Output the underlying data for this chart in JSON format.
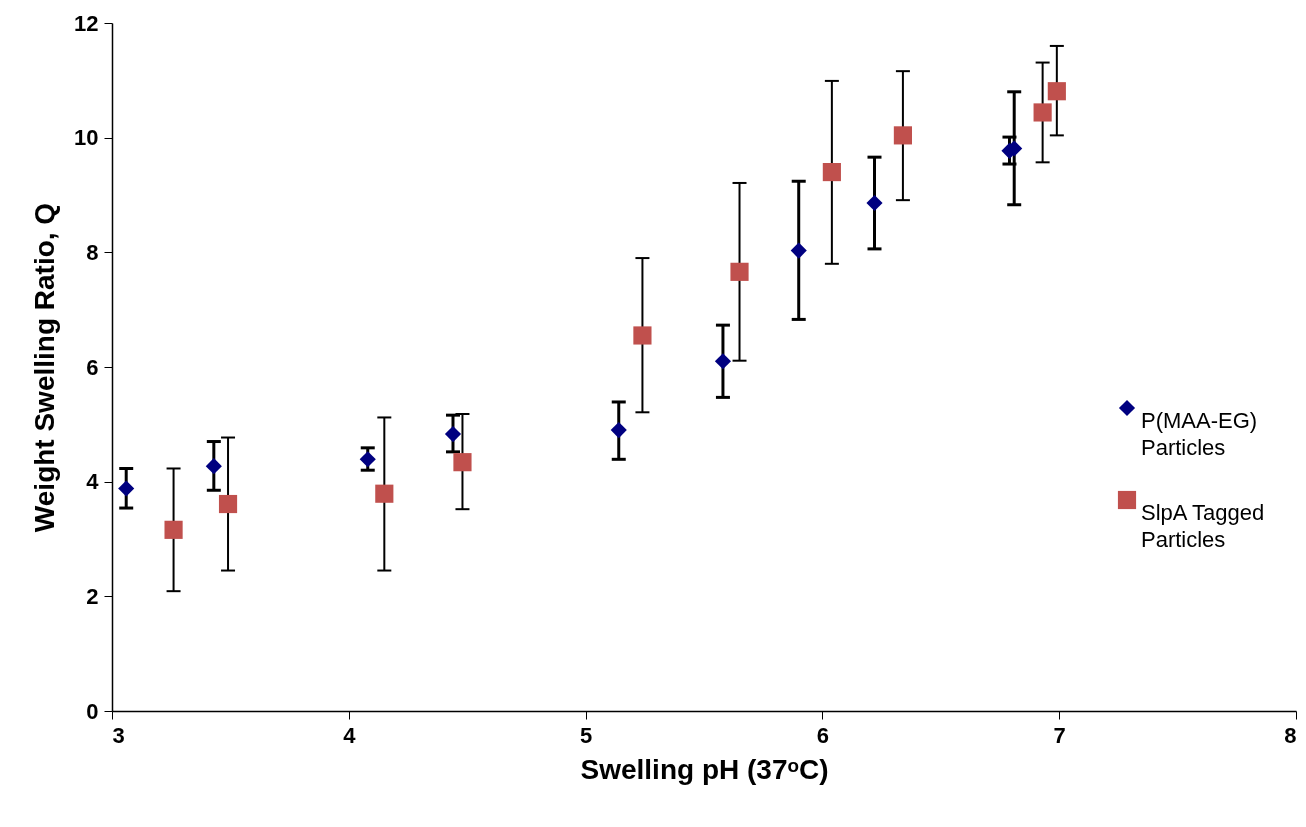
{
  "chart_data": {
    "type": "scatter",
    "xlabel": "Swelling pH (37ᵒC)",
    "ylabel": "Weight Swelling Ratio, Q",
    "xlim": [
      3,
      8
    ],
    "xticks": [
      3,
      4,
      5,
      6,
      7,
      8
    ],
    "ylim": [
      0,
      12
    ],
    "yticks": [
      0,
      2,
      4,
      6,
      8,
      10,
      12
    ],
    "grid": false,
    "legend": "right",
    "series": [
      {
        "name": "P(MAA-EG) Particles",
        "color": "#000080",
        "marker": "diamond",
        "x": [
          3.06,
          3.43,
          4.08,
          4.44,
          5.14,
          5.58,
          5.9,
          6.22,
          6.79,
          6.81
        ],
        "values": [
          3.88,
          4.27,
          4.39,
          4.83,
          4.9,
          6.1,
          8.03,
          8.86,
          9.77,
          9.81
        ],
        "errors": [
          [
            3.54,
            4.23
          ],
          [
            3.85,
            4.7
          ],
          [
            4.2,
            4.59
          ],
          [
            4.52,
            5.16
          ],
          [
            4.39,
            5.39
          ],
          [
            5.47,
            6.73
          ],
          [
            6.83,
            9.24
          ],
          [
            8.06,
            9.66
          ],
          [
            9.54,
            10.01
          ],
          [
            8.83,
            10.8
          ]
        ]
      },
      {
        "name": "SlpA Tagged Particles",
        "color": "#c0504d",
        "marker": "square",
        "x": [
          3.26,
          3.49,
          4.15,
          4.48,
          5.24,
          5.65,
          6.04,
          6.34,
          6.93,
          6.99
        ],
        "values": [
          3.16,
          3.61,
          3.79,
          4.34,
          6.55,
          7.66,
          9.4,
          10.04,
          10.44,
          10.81
        ],
        "errors": [
          [
            2.09,
            4.23
          ],
          [
            2.45,
            4.77
          ],
          [
            2.45,
            5.12
          ],
          [
            3.52,
            5.18
          ],
          [
            5.21,
            7.9
          ],
          [
            6.11,
            9.21
          ],
          [
            7.8,
            10.99
          ],
          [
            8.91,
            11.16
          ],
          [
            9.57,
            11.31
          ],
          [
            10.04,
            11.6
          ]
        ]
      }
    ]
  }
}
